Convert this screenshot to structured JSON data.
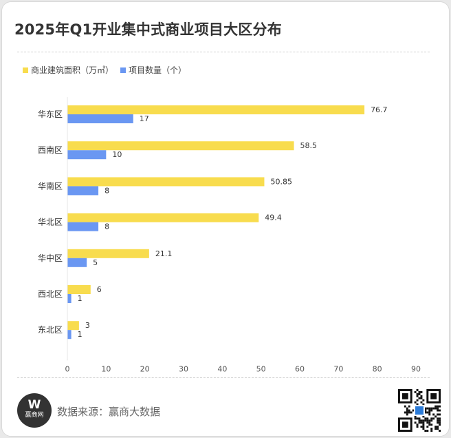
{
  "page": {
    "title": "2025年Q1开业集中式商业项目大区分布",
    "source": "数据来源：赢商大数据",
    "logo_mark": "W",
    "logo_name": "赢商网",
    "colors": {
      "area": "#F8DC4E",
      "count": "#6A97F2",
      "text": "#333333",
      "muted": "#666666"
    }
  },
  "chart_data": {
    "type": "bar",
    "orientation": "horizontal",
    "categories": [
      "华东区",
      "西南区",
      "华南区",
      "华北区",
      "华中区",
      "西北区",
      "东北区"
    ],
    "series": [
      {
        "name": "商业建筑面积（万㎡）",
        "values": [
          76.7,
          58.5,
          50.85,
          49.4,
          21.1,
          6,
          3
        ],
        "labels": [
          "76.7",
          "58.5",
          "50.85",
          "49.4",
          "21.1",
          "6",
          "3"
        ],
        "color": "#F8DC4E"
      },
      {
        "name": "项目数量（个）",
        "values": [
          17,
          10,
          8,
          8,
          5,
          1,
          1
        ],
        "labels": [
          "17",
          "10",
          "8",
          "8",
          "5",
          "1",
          "1"
        ],
        "color": "#6A97F2"
      }
    ],
    "xticks": [
      0,
      10,
      20,
      30,
      40,
      50,
      60,
      70,
      80,
      90
    ],
    "xlim": [
      0,
      90
    ],
    "legend": "top-left",
    "grid": false
  }
}
